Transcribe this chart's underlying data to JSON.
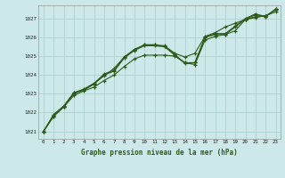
{
  "title": "Graphe pression niveau de la mer (hPa)",
  "background_color": "#cce8e8",
  "grid_color": "#aacccc",
  "line_color": "#2d5a1b",
  "xlim": [
    -0.5,
    23.5
  ],
  "ylim": [
    1020.6,
    1027.7
  ],
  "yticks": [
    1021,
    1022,
    1023,
    1024,
    1025,
    1026,
    1027
  ],
  "xticks": [
    0,
    1,
    2,
    3,
    4,
    5,
    6,
    7,
    8,
    9,
    10,
    11,
    12,
    13,
    14,
    15,
    16,
    17,
    18,
    19,
    20,
    21,
    22,
    23
  ],
  "series1": [
    1021.0,
    1021.8,
    1022.3,
    1022.9,
    1023.15,
    1023.35,
    1023.7,
    1024.0,
    1024.45,
    1024.85,
    1025.05,
    1025.05,
    1025.05,
    1025.0,
    1024.65,
    1024.55,
    1025.85,
    1026.05,
    1026.15,
    1026.35,
    1026.95,
    1027.05,
    1027.15,
    1027.35
  ],
  "series2": [
    1021.0,
    1021.85,
    1022.3,
    1023.05,
    1023.2,
    1023.55,
    1023.95,
    1024.35,
    1024.95,
    1025.35,
    1025.6,
    1025.6,
    1025.55,
    1025.15,
    1024.95,
    1025.15,
    1026.05,
    1026.25,
    1026.55,
    1026.75,
    1026.95,
    1027.1,
    1027.15,
    1027.45
  ],
  "series3": [
    1021.0,
    1021.9,
    1022.35,
    1023.05,
    1023.25,
    1023.55,
    1024.05,
    1024.25,
    1024.95,
    1025.35,
    1025.6,
    1025.6,
    1025.5,
    1025.1,
    1024.6,
    1024.65,
    1026.0,
    1026.15,
    1026.15,
    1026.55,
    1026.95,
    1027.2,
    1027.1,
    1027.5
  ],
  "series4": [
    1021.0,
    1021.8,
    1022.3,
    1023.0,
    1023.2,
    1023.5,
    1024.0,
    1024.2,
    1024.9,
    1025.3,
    1025.55,
    1025.55,
    1025.5,
    1025.05,
    1024.65,
    1024.65,
    1026.0,
    1026.2,
    1026.2,
    1026.6,
    1027.0,
    1027.25,
    1027.1,
    1027.5
  ]
}
